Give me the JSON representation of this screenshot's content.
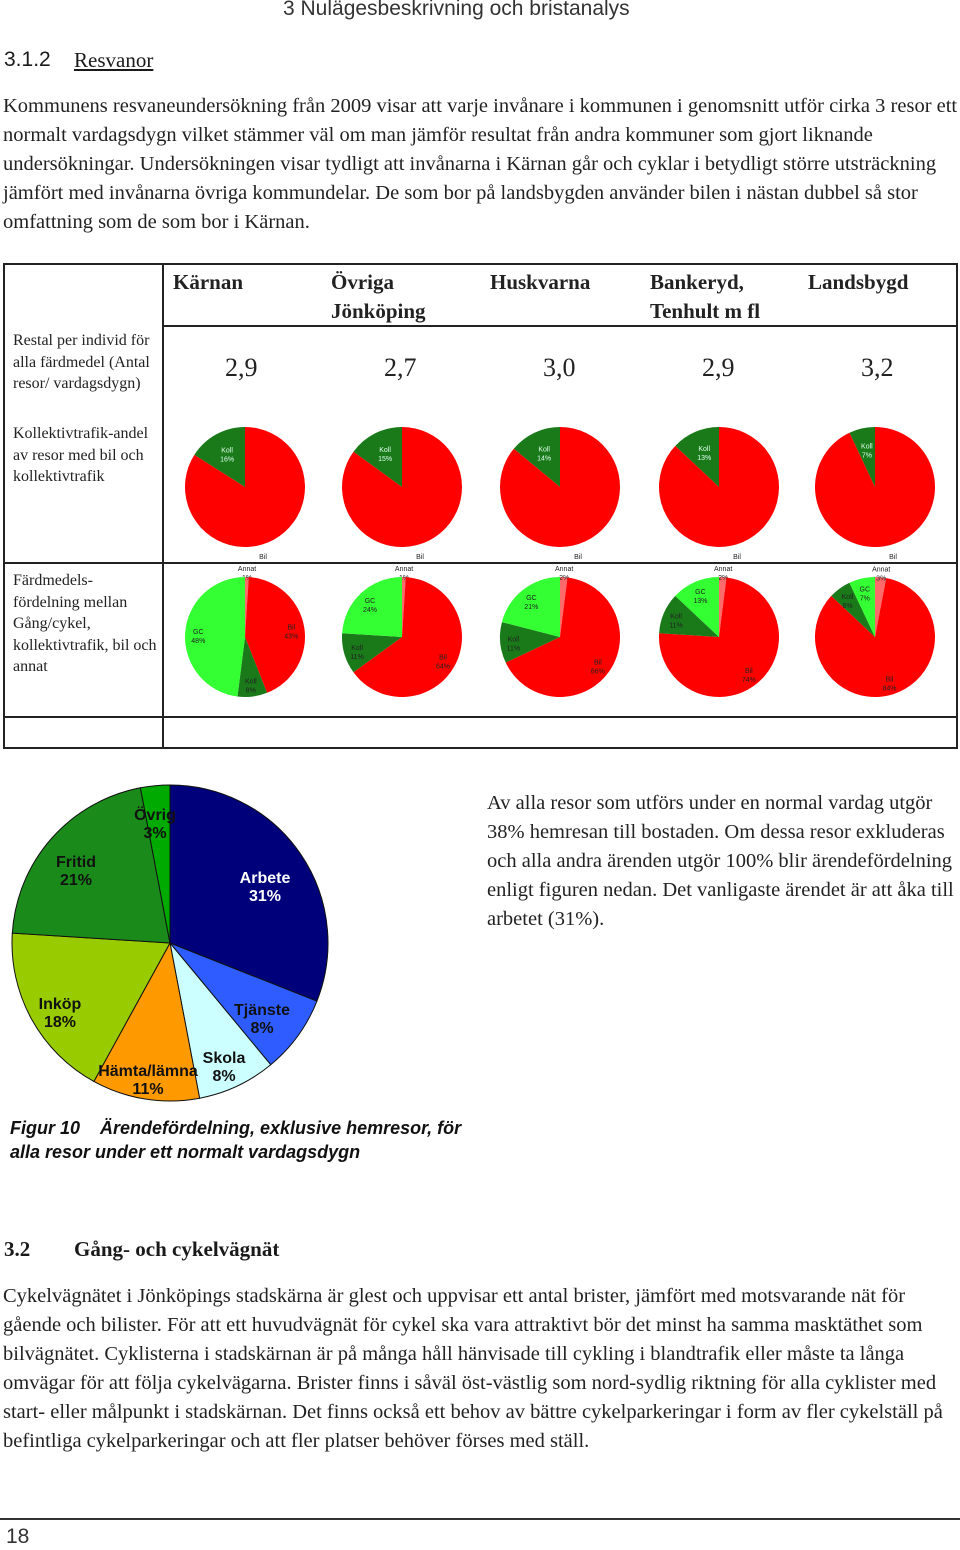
{
  "header": {
    "running_title": "3 Nulägesbeskrivning och bristanalys"
  },
  "section": {
    "number": "3.1.2",
    "title": "Resvanor"
  },
  "intro_paragraph": "Kommunens resvaneundersökning från 2009 visar att varje invånare i kommunen i genomsnitt utför cirka 3 resor ett normalt vardagsdygn vilket stämmer väl om man jämför resultat från andra kommuner som gjort liknande undersökningar. Undersökningen visar tydligt att invånarna i Kärnan går och cyklar i betydligt större utsträckning jämfört med invånarna övriga kommundelar. De som bor på landsbygden använder bilen i nästan dubbel så stor omfattning som de som bor i Kärnan.",
  "table": {
    "columns": [
      "Kärnan",
      "Övriga Jönköping",
      "Huskvarna",
      "Bankeryd, Tenhult m fl",
      "Landsbygd"
    ],
    "row_labels": {
      "trips": "Restal per individ för alla färdmedel (Antal resor/ vardagsdygn)",
      "transit_share": "Kollektivtrafik-andel av resor med bil och kollektivtrafik",
      "mode_split": "Färdmedels-fördelning mellan Gång/cykel, kollektivtrafik, bil och annat"
    },
    "trip_rates": [
      "2,9",
      "2,7",
      "3,0",
      "2,9",
      "3,2"
    ],
    "colors": {
      "bil": "#ff0000",
      "koll": "#1a7a1a",
      "gc": "#33ff33",
      "annat": "#ff6a6a"
    }
  },
  "chart_data": [
    {
      "type": "pie",
      "title": "Kollektivtrafikandel – Kärnan",
      "slices": [
        {
          "label": "Koll",
          "value": 16,
          "value_label": "16%"
        },
        {
          "label": "Bil",
          "value": 84,
          "value_label": "84%"
        }
      ]
    },
    {
      "type": "pie",
      "title": "Kollektivtrafikandel – Övriga Jönköping",
      "slices": [
        {
          "label": "Koll",
          "value": 15,
          "value_label": "15%"
        },
        {
          "label": "Bil",
          "value": 85,
          "value_label": "85%"
        }
      ]
    },
    {
      "type": "pie",
      "title": "Kollektivtrafikandel – Huskvarna",
      "slices": [
        {
          "label": "Koll",
          "value": 14,
          "value_label": "14%"
        },
        {
          "label": "Bil",
          "value": 86,
          "value_label": "86%"
        }
      ]
    },
    {
      "type": "pie",
      "title": "Kollektivtrafikandel – Bankeryd, Tenhult m fl",
      "slices": [
        {
          "label": "Koll",
          "value": 13,
          "value_label": "13%"
        },
        {
          "label": "Bil",
          "value": 87,
          "value_label": "87%"
        }
      ]
    },
    {
      "type": "pie",
      "title": "Kollektivtrafikandel – Landsbygd",
      "slices": [
        {
          "label": "Koll",
          "value": 7,
          "value_label": "7%"
        },
        {
          "label": "Bil",
          "value": 93,
          "value_label": "93%"
        }
      ]
    },
    {
      "type": "pie",
      "title": "Färdmedelsfördelning – Kärnan",
      "slices": [
        {
          "label": "Annat",
          "value": 1,
          "value_label": "1%"
        },
        {
          "label": "Bil",
          "value": 43,
          "value_label": "43%"
        },
        {
          "label": "Koll",
          "value": 8,
          "value_label": "8%"
        },
        {
          "label": "GC",
          "value": 48,
          "value_label": "48%"
        }
      ]
    },
    {
      "type": "pie",
      "title": "Färdmedelsfördelning – Övriga Jönköping",
      "slices": [
        {
          "label": "Annat",
          "value": 1,
          "value_label": "1%"
        },
        {
          "label": "Bil",
          "value": 64,
          "value_label": "64%"
        },
        {
          "label": "Koll",
          "value": 11,
          "value_label": "11%"
        },
        {
          "label": "GC",
          "value": 24,
          "value_label": "24%"
        }
      ]
    },
    {
      "type": "pie",
      "title": "Färdmedelsfördelning – Huskvarna",
      "slices": [
        {
          "label": "Annat",
          "value": 2,
          "value_label": "2%"
        },
        {
          "label": "Bil",
          "value": 66,
          "value_label": "66%"
        },
        {
          "label": "Koll",
          "value": 11,
          "value_label": "11%"
        },
        {
          "label": "GC",
          "value": 21,
          "value_label": "21%"
        }
      ]
    },
    {
      "type": "pie",
      "title": "Färdmedelsfördelning – Bankeryd, Tenhult m fl",
      "slices": [
        {
          "label": "Annat",
          "value": 2,
          "value_label": "2%"
        },
        {
          "label": "Bil",
          "value": 74,
          "value_label": "74%"
        },
        {
          "label": "Koll",
          "value": 11,
          "value_label": "11%"
        },
        {
          "label": "GC",
          "value": 13,
          "value_label": "13%"
        }
      ]
    },
    {
      "type": "pie",
      "title": "Färdmedelsfördelning – Landsbygd",
      "slices": [
        {
          "label": "Annat",
          "value": 3,
          "value_label": "3%"
        },
        {
          "label": "Bil",
          "value": 84,
          "value_label": "84%"
        },
        {
          "label": "Koll",
          "value": 6,
          "value_label": "6%"
        },
        {
          "label": "GC",
          "value": 7,
          "value_label": "7%"
        }
      ]
    },
    {
      "type": "pie",
      "title": "Ärendefördelning, exklusive hemresor",
      "slices": [
        {
          "label": "Arbete",
          "value": 31,
          "value_label": "31%",
          "color": "#00007a"
        },
        {
          "label": "Tjänste",
          "value": 8,
          "value_label": "8%",
          "color": "#2e5cff"
        },
        {
          "label": "Skola",
          "value": 8,
          "value_label": "8%",
          "color": "#ccffff"
        },
        {
          "label": "Hämta/lämna",
          "value": 11,
          "value_label": "11%",
          "color": "#ff9900"
        },
        {
          "label": "Inköp",
          "value": 18,
          "value_label": "18%",
          "color": "#99cc00"
        },
        {
          "label": "Fritid",
          "value": 21,
          "value_label": "21%",
          "color": "#1a8a1a"
        },
        {
          "label": "Övrig",
          "value": 3,
          "value_label": "3%",
          "color": "#00aa00"
        }
      ]
    }
  ],
  "purpose_text": "Av alla resor som utförs under en normal vardag utgör 38% hemresan till bostaden. Om dessa resor exkluderas och alla andra ärenden utgör 100% blir ärendefördelning enligt figuren nedan. Det vanligaste ärendet är att åka till arbetet (31%).",
  "figure_caption": {
    "number": "Figur 10",
    "text": "Ärendefördelning, exklusive hemresor, för alla resor under ett normalt vardagsdygn"
  },
  "section2": {
    "number": "3.2",
    "title": "Gång- och cykelvägnät"
  },
  "section2_paragraph": "Cykelvägnätet i Jönköpings stadskärna är glest och uppvisar ett antal brister, jämfört med motsvarande nät för gående och bilister. För att ett huvudvägnät för cykel ska vara attraktivt bör det minst ha samma masktäthet som bilvägnätet. Cyklisterna i stadskärnan är på många håll hänvisade till cykling i blandtrafik eller måste ta långa omvägar för att följa cykelvägarna. Brister finns i såväl öst-västlig som nord-sydlig riktning för alla cyklister med start- eller målpunkt i stadskärnan. Det finns också ett behov av bättre cykelparkeringar i form av fler cykelställ på befintliga cykelparkeringar och att fler platser behöver förses med ställ.",
  "footer": {
    "page_number": "18"
  }
}
